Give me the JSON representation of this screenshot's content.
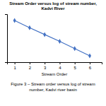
{
  "chart_data": {
    "type": "line",
    "title": "Stream Order versus log of stream number,\nKadvi River",
    "x_label": "Stream Order",
    "caption": "Figure 3 – Stream order versus log of stream\nnumber, Kadvi river basin",
    "x": [
      1,
      2,
      3,
      4,
      5,
      6
    ],
    "values": [
      2.08,
      1.72,
      1.38,
      1.04,
      0.68,
      0.32
    ],
    "color": "#4472C4",
    "marker": "diamond",
    "xlim": [
      0.5,
      6.8
    ],
    "ylim": [
      0.0,
      2.4
    ],
    "xticks": [
      1,
      2,
      3,
      4,
      5,
      6
    ],
    "yticks": [],
    "tick_labels": "x",
    "grid": false
  }
}
